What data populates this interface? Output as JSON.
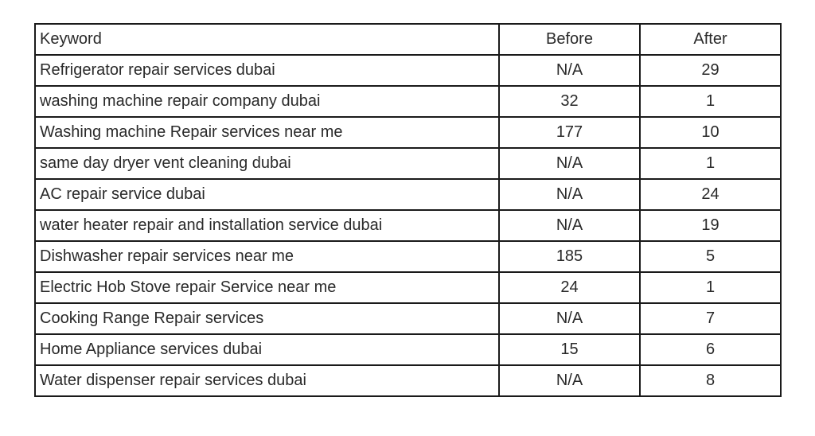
{
  "table": {
    "headers": [
      "Keyword",
      "Before",
      "After"
    ],
    "rows": [
      [
        "Refrigerator repair services dubai",
        "N/A",
        "29"
      ],
      [
        "washing machine repair company dubai",
        "32",
        "1"
      ],
      [
        "Washing machine Repair services near me",
        "177",
        "10"
      ],
      [
        "same day dryer vent cleaning dubai",
        "N/A",
        "1"
      ],
      [
        "AC repair service dubai",
        "N/A",
        "24"
      ],
      [
        "water heater repair and installation service dubai",
        "N/A",
        "19"
      ],
      [
        "Dishwasher repair services near me",
        "185",
        "5"
      ],
      [
        "Electric Hob Stove repair Service near me",
        "24",
        "1"
      ],
      [
        "Cooking Range Repair services",
        "N/A",
        "7"
      ],
      [
        "Home Appliance services dubai",
        "15",
        "6"
      ],
      [
        "Water dispenser repair services dubai",
        "N/A",
        "8"
      ]
    ]
  }
}
